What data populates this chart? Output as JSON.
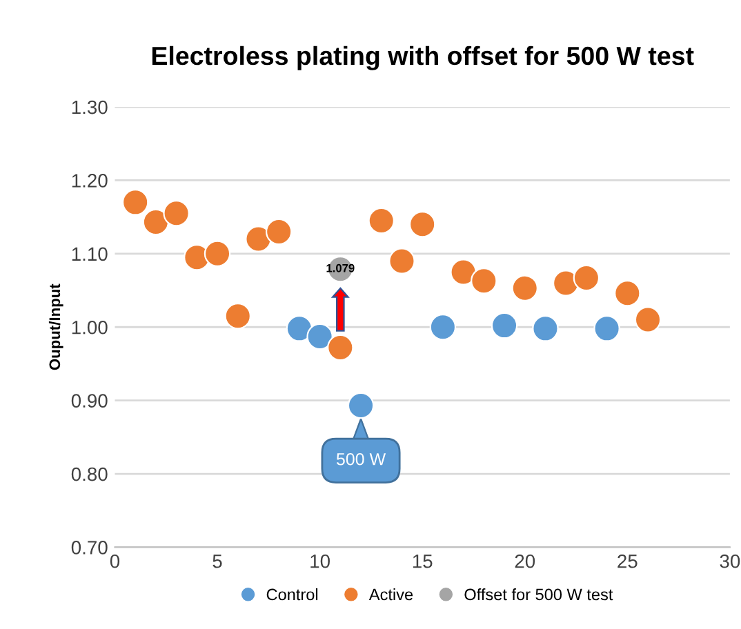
{
  "chart_data": {
    "type": "scatter",
    "title": "Electroless plating with offset for 500 W test",
    "ylabel": "Ouput/Input",
    "xlim": [
      0,
      30
    ],
    "xticks": [
      0,
      5,
      10,
      15,
      20,
      25,
      30
    ],
    "ylim": [
      0.7,
      1.3
    ],
    "yticks": [
      {
        "value": 0.7,
        "label": "0.70"
      },
      {
        "value": 0.8,
        "label": "0.80"
      },
      {
        "value": 0.9,
        "label": "0.90"
      },
      {
        "value": 1.0,
        "label": "1.00"
      },
      {
        "value": 1.1,
        "label": "1.10"
      },
      {
        "value": 1.2,
        "label": "1.20"
      },
      {
        "value": 1.3,
        "label": "1.30"
      }
    ],
    "grid": "y",
    "legend": "bottom",
    "marker": "circle",
    "series": [
      {
        "name": "Control",
        "color": "#5b9bd5",
        "x": [
          9,
          10,
          12,
          16,
          19,
          21,
          24
        ],
        "values": [
          0.998,
          0.987,
          0.893,
          1.0,
          1.002,
          0.998,
          0.998
        ]
      },
      {
        "name": "Active",
        "color": "#ed7d31",
        "x": [
          1,
          2,
          3,
          4,
          5,
          6,
          7,
          8,
          11,
          13,
          14,
          15,
          17,
          18,
          20,
          22,
          23,
          25,
          26
        ],
        "values": [
          1.17,
          1.143,
          1.155,
          1.095,
          1.1,
          1.015,
          1.12,
          1.13,
          0.972,
          1.145,
          1.09,
          1.14,
          1.075,
          1.063,
          1.053,
          1.06,
          1.067,
          1.046,
          1.01
        ]
      },
      {
        "name": "Offset for 500 W test",
        "color": "#a5a5a5",
        "x": [
          11
        ],
        "values": [
          1.079
        ],
        "value_labels": [
          "1.079"
        ]
      }
    ],
    "annotations": [
      {
        "text": "500 W",
        "x": 12,
        "y": 0.893
      }
    ]
  }
}
